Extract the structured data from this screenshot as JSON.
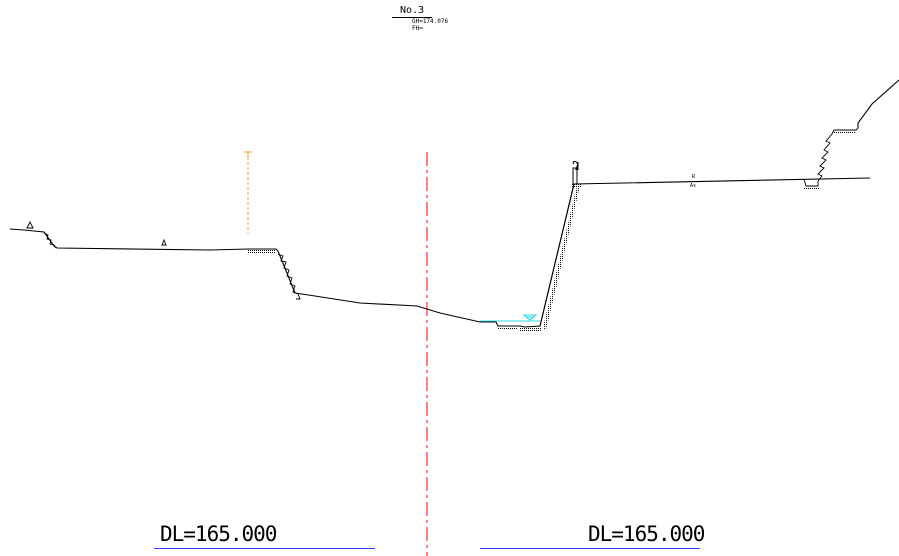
{
  "section": {
    "station": "No.3",
    "gh": "GH=174.076",
    "fh": "FH="
  },
  "datum": {
    "left": "DL=165.000",
    "right": "DL=165.000"
  },
  "pavement": {
    "top": "R",
    "bottom": "As"
  },
  "colors": {
    "ground": "#000000",
    "centerline": "#ff2a2a",
    "utility": "#f0a030",
    "water": "#2fd8e8",
    "datum_underline": "#2a3bff"
  }
}
